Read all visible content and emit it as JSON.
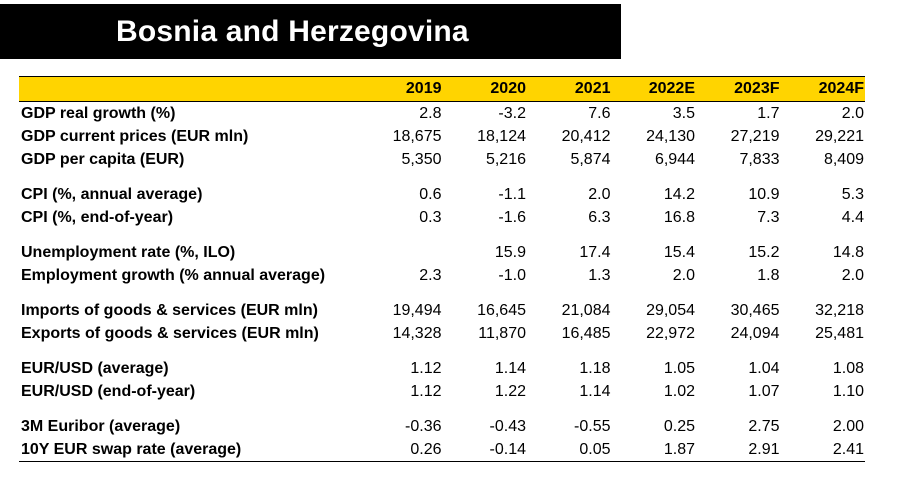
{
  "title": "Bosnia and Herzegovina",
  "columns": [
    "2019",
    "2020",
    "2021",
    "2022E",
    "2023F",
    "2024F"
  ],
  "rows": [
    {
      "label": "GDP real growth (%)",
      "values": [
        "2.8",
        "-3.2",
        "7.6",
        "3.5",
        "1.7",
        "2.0"
      ]
    },
    {
      "label": "GDP current prices (EUR mln)",
      "values": [
        "18,675",
        "18,124",
        "20,412",
        "24,130",
        "27,219",
        "29,221"
      ]
    },
    {
      "label": "GDP per capita (EUR)",
      "values": [
        "5,350",
        "5,216",
        "5,874",
        "6,944",
        "7,833",
        "8,409"
      ]
    },
    {
      "label": "CPI (%, annual average)",
      "values": [
        "0.6",
        "-1.1",
        "2.0",
        "14.2",
        "10.9",
        "5.3"
      ]
    },
    {
      "label": "CPI (%, end-of-year)",
      "values": [
        "0.3",
        "-1.6",
        "6.3",
        "16.8",
        "7.3",
        "4.4"
      ]
    },
    {
      "label": "Unemployment rate (%, ILO)",
      "values": [
        "",
        "15.9",
        "17.4",
        "15.4",
        "15.2",
        "14.8"
      ]
    },
    {
      "label": "Employment growth (% annual average)",
      "values": [
        "2.3",
        "-1.0",
        "1.3",
        "2.0",
        "1.8",
        "2.0"
      ]
    },
    {
      "label": "Imports of goods & services (EUR mln)",
      "values": [
        "19,494",
        "16,645",
        "21,084",
        "29,054",
        "30,465",
        "32,218"
      ]
    },
    {
      "label": "Exports of goods & services (EUR mln)",
      "values": [
        "14,328",
        "11,870",
        "16,485",
        "22,972",
        "24,094",
        "25,481"
      ]
    },
    {
      "label": "EUR/USD (average)",
      "values": [
        "1.12",
        "1.14",
        "1.18",
        "1.05",
        "1.04",
        "1.08"
      ]
    },
    {
      "label": "EUR/USD (end-of-year)",
      "values": [
        "1.12",
        "1.22",
        "1.14",
        "1.02",
        "1.07",
        "1.10"
      ]
    },
    {
      "label": "3M Euribor (average)",
      "values": [
        "-0.36",
        "-0.43",
        "-0.55",
        "0.25",
        "2.75",
        "2.00"
      ]
    },
    {
      "label": "10Y EUR swap rate (average)",
      "values": [
        "0.26",
        "-0.14",
        "0.05",
        "1.87",
        "2.91",
        "2.41"
      ]
    }
  ],
  "header_color": "#ffd400"
}
